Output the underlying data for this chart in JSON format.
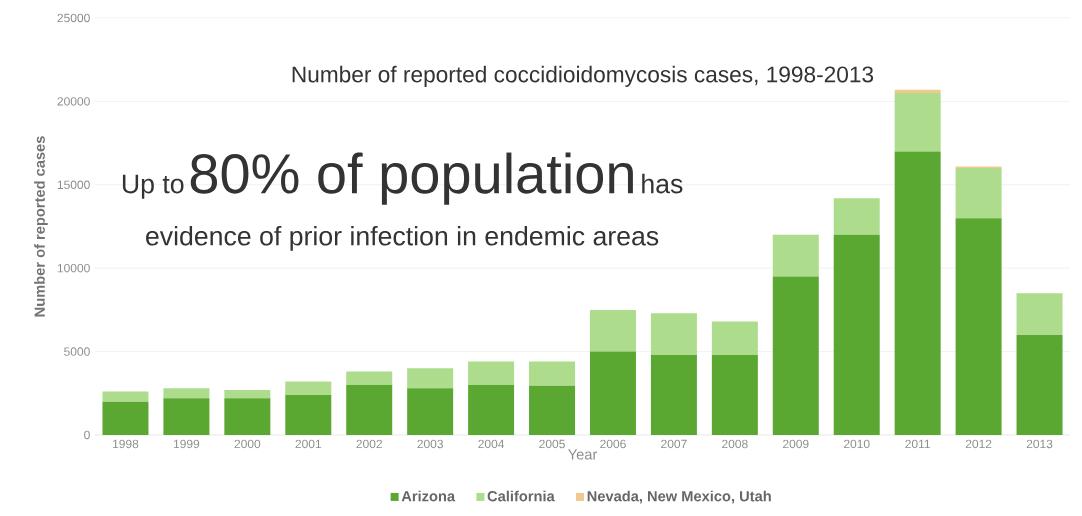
{
  "chart_data": {
    "type": "bar",
    "stacked": true,
    "title": "Number of reported coccidioidomycosis cases, 1998-2013",
    "xlabel": "Year",
    "ylabel": "Number of reported cases",
    "categories": [
      "1998",
      "1999",
      "2000",
      "2001",
      "2002",
      "2003",
      "2004",
      "2005",
      "2006",
      "2007",
      "2008",
      "2009",
      "2010",
      "2011",
      "2012",
      "2013"
    ],
    "series": [
      {
        "name": "Arizona",
        "color": "#5aa832",
        "values": [
          2000,
          2200,
          2200,
          2400,
          3000,
          2800,
          3000,
          2950,
          5000,
          4800,
          4800,
          9500,
          12000,
          17000,
          13000,
          6000
        ]
      },
      {
        "name": "California",
        "color": "#acdc8c",
        "values": [
          600,
          600,
          500,
          800,
          800,
          1200,
          1400,
          1450,
          2500,
          2500,
          2000,
          2500,
          2200,
          3500,
          3000,
          2500
        ]
      },
      {
        "name": "Nevada,  New Mexico, Utah",
        "color": "#f0c890",
        "values": [
          0,
          0,
          0,
          0,
          0,
          0,
          0,
          0,
          0,
          0,
          0,
          0,
          0,
          200,
          100,
          0
        ]
      }
    ],
    "ylim": [
      0,
      25000
    ],
    "yticks": [
      0,
      5000,
      10000,
      15000,
      20000,
      25000
    ],
    "grid": "y",
    "legend": "bottom",
    "annotations": [
      "Up to",
      "80% of population",
      "has",
      "evidence of prior infection in endemic areas"
    ]
  }
}
